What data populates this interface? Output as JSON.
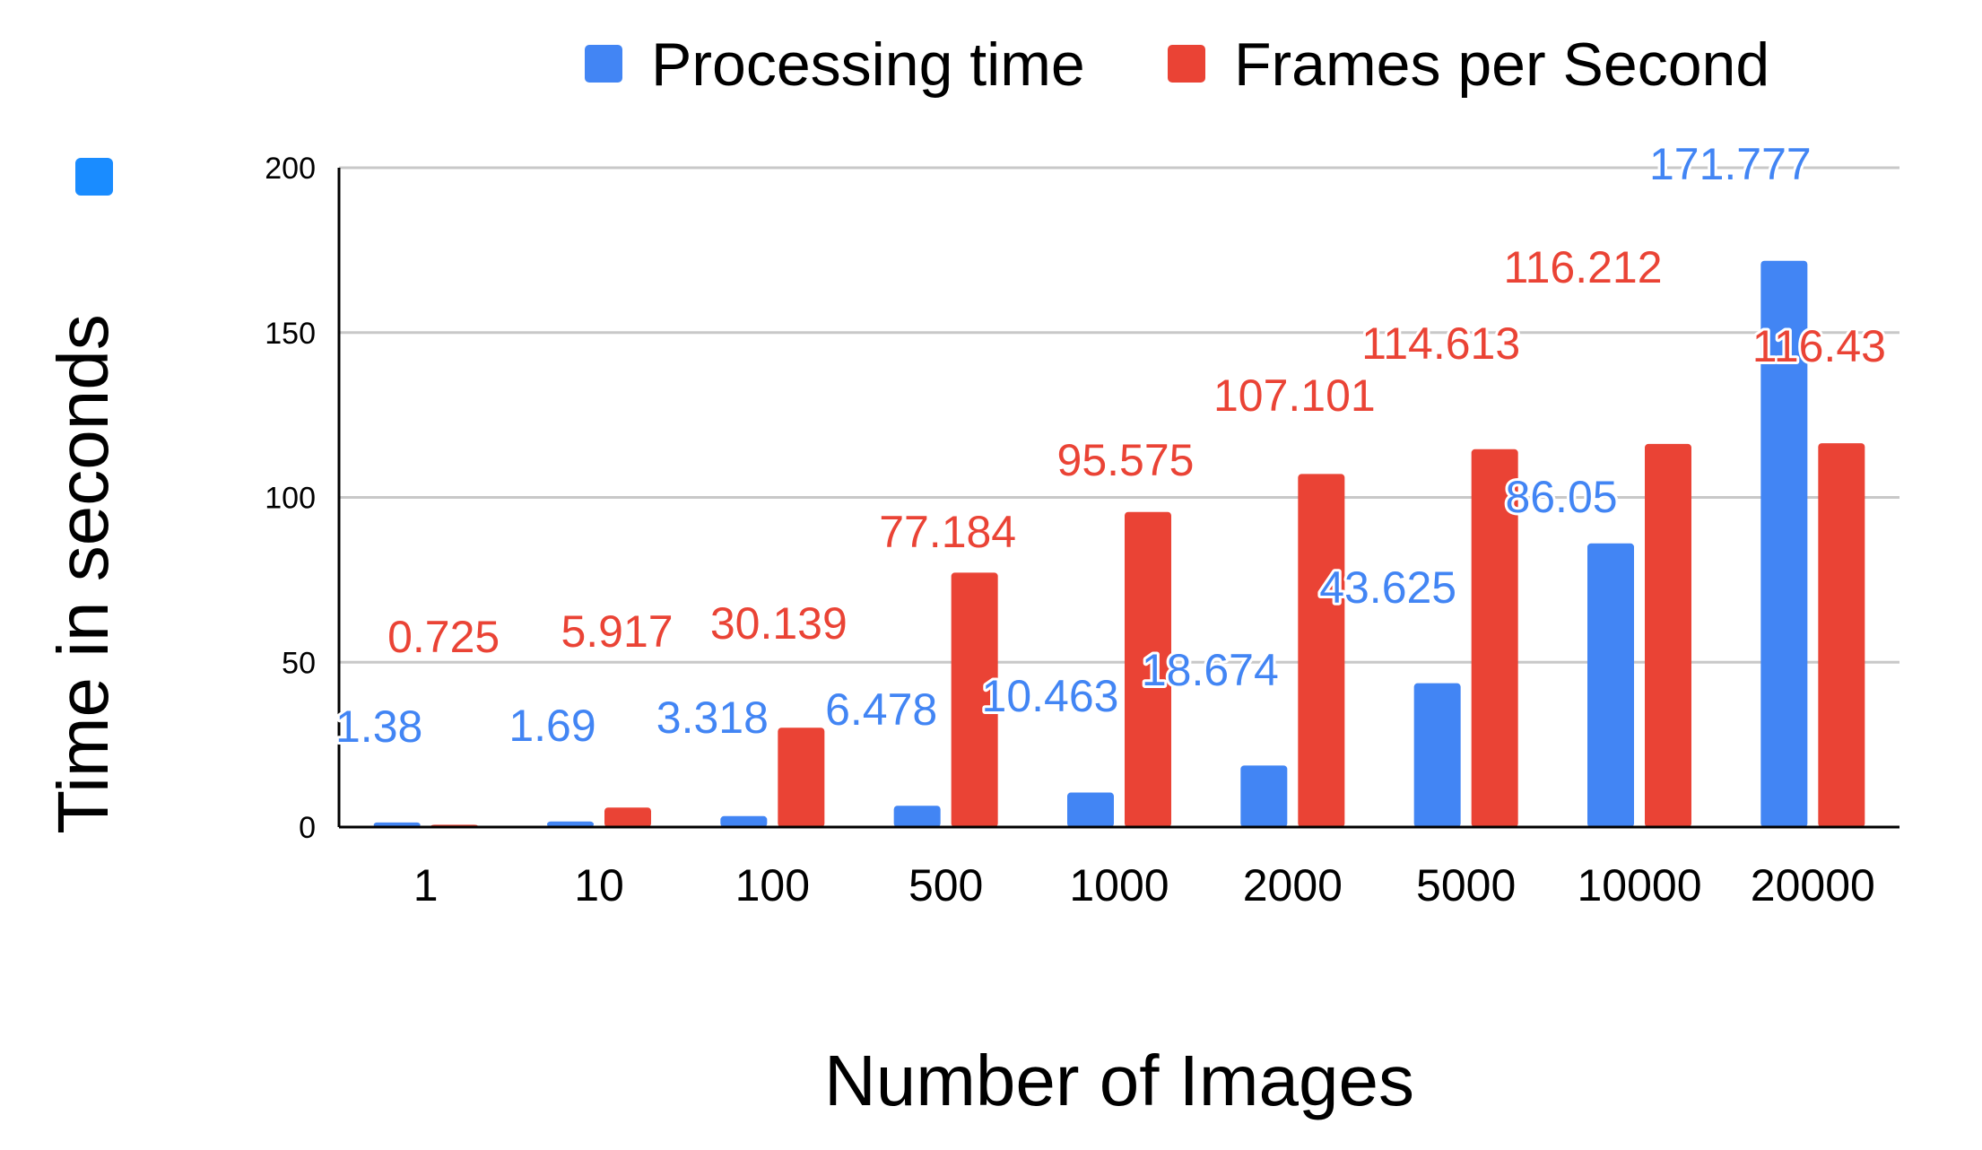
{
  "chart_data": {
    "type": "bar",
    "categories": [
      "1",
      "10",
      "100",
      "500",
      "1000",
      "2000",
      "5000",
      "10000",
      "20000"
    ],
    "series": [
      {
        "name": "Processing time",
        "color": "#4285F4",
        "values": [
          1.38,
          1.69,
          3.318,
          6.478,
          10.463,
          18.674,
          43.625,
          86.05,
          171.777
        ],
        "labels": [
          "1.38",
          "1.69",
          "3.318",
          "6.478",
          "10.463",
          "18.674",
          "43.625",
          "86.05",
          "171.777"
        ]
      },
      {
        "name": "Frames per Second",
        "color": "#EA4335",
        "values": [
          0.725,
          5.917,
          30.139,
          77.184,
          95.575,
          107.101,
          114.613,
          116.212,
          116.43
        ],
        "labels": [
          "0.725",
          "5.917",
          "30.139",
          "77.184",
          "95.575",
          "107.101",
          "114.613",
          "116.212",
          "116.43"
        ]
      }
    ],
    "xlabel": "Number of Images",
    "ylabel": "Time in seconds",
    "ylabel_marker_color": "#1A8CFF",
    "ylim": [
      0,
      200
    ],
    "yticks": [
      0,
      50,
      100,
      150,
      200
    ],
    "grid": true,
    "legend": "top"
  }
}
